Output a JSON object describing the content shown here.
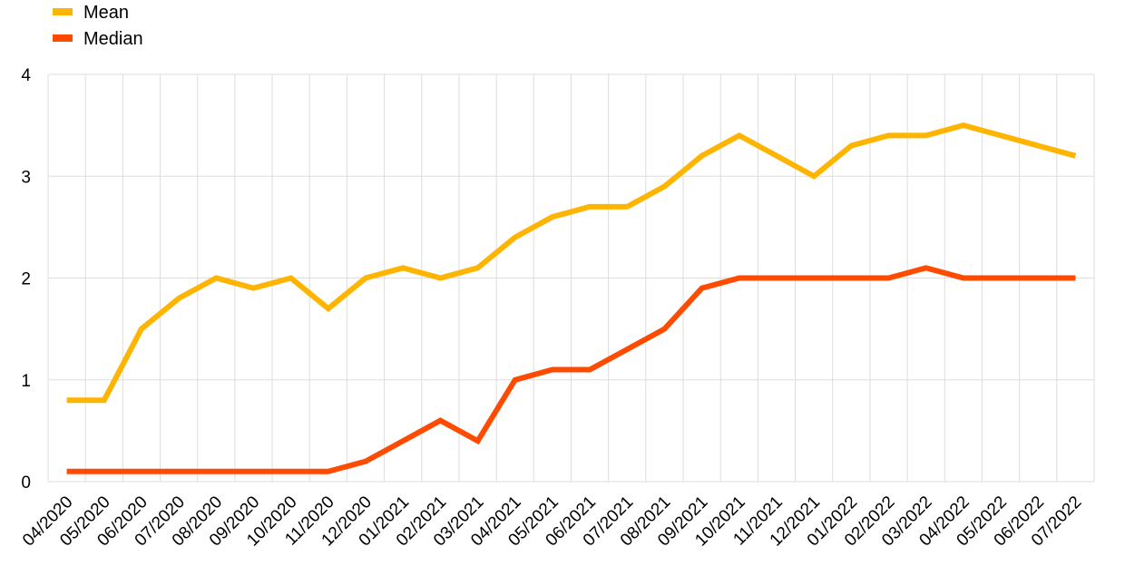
{
  "chart_data": {
    "type": "line",
    "categories": [
      "04/2020",
      "05/2020",
      "06/2020",
      "07/2020",
      "08/2020",
      "09/2020",
      "10/2020",
      "11/2020",
      "12/2020",
      "01/2021",
      "02/2021",
      "03/2021",
      "04/2021",
      "05/2021",
      "06/2021",
      "07/2021",
      "08/2021",
      "09/2021",
      "10/2021",
      "11/2021",
      "12/2021",
      "01/2022",
      "02/2022",
      "03/2022",
      "04/2022",
      "05/2022",
      "06/2022",
      "07/2022"
    ],
    "series": [
      {
        "name": "Mean",
        "color": "#FFB400",
        "values": [
          0.8,
          0.8,
          1.5,
          1.8,
          2.0,
          1.9,
          2.0,
          1.7,
          2.0,
          2.1,
          2.0,
          2.1,
          2.4,
          2.6,
          2.7,
          2.7,
          2.9,
          3.2,
          3.4,
          3.2,
          3.0,
          3.3,
          3.4,
          3.4,
          3.5,
          3.4,
          3.3,
          3.2
        ]
      },
      {
        "name": "Median",
        "color": "#FF4B00",
        "values": [
          0.1,
          0.1,
          0.1,
          0.1,
          0.1,
          0.1,
          0.1,
          0.1,
          0.2,
          0.4,
          0.6,
          0.4,
          1.0,
          1.1,
          1.1,
          1.3,
          1.5,
          1.9,
          2.0,
          2.0,
          2.0,
          2.0,
          2.0,
          2.1,
          2.0,
          2.0,
          2.0,
          2.0
        ]
      }
    ],
    "ylim": [
      0,
      4
    ],
    "yticks": [
      "0",
      "1",
      "2",
      "3",
      "4"
    ],
    "grid": true,
    "legend_position": "top-left"
  }
}
